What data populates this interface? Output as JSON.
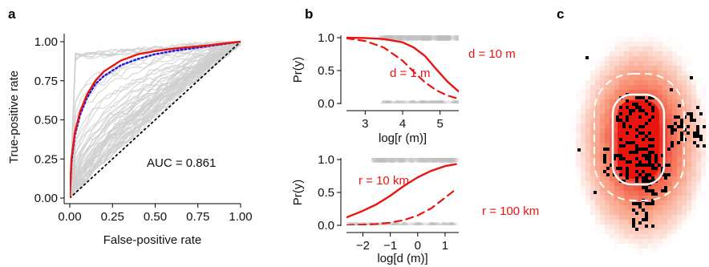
{
  "panels": {
    "a": "a",
    "b": "b",
    "c": "c"
  },
  "colors": {
    "red": "#e8140f",
    "blue": "#1a1adf",
    "gray": "#cfcfcf",
    "black": "#000000"
  },
  "chart_data": [
    {
      "type": "line",
      "panel": "a",
      "xlabel": "False-positive rate",
      "ylabel": "True-positive rate",
      "xlim": [
        0,
        1
      ],
      "ylim": [
        0,
        1
      ],
      "xticks": [
        "0.00",
        "0.25",
        "0.50",
        "0.75",
        "1.00"
      ],
      "yticks": [
        "0.00",
        "0.25",
        "0.50",
        "0.75",
        "1.00"
      ],
      "annotation": "AUC = 0.861",
      "series": [
        {
          "style": "solid-red",
          "x": [
            0,
            0.01,
            0.03,
            0.06,
            0.1,
            0.15,
            0.2,
            0.3,
            0.4,
            0.5,
            0.6,
            0.7,
            0.8,
            0.9,
            1.0
          ],
          "y": [
            0,
            0.25,
            0.42,
            0.55,
            0.66,
            0.75,
            0.81,
            0.88,
            0.92,
            0.94,
            0.955,
            0.965,
            0.975,
            0.988,
            1.0
          ]
        },
        {
          "style": "dotted-blue",
          "x": [
            0,
            0.01,
            0.03,
            0.06,
            0.1,
            0.15,
            0.2,
            0.3,
            0.4,
            0.5,
            0.6,
            0.7,
            0.8,
            0.9,
            1.0
          ],
          "y": [
            0,
            0.23,
            0.4,
            0.53,
            0.64,
            0.73,
            0.78,
            0.85,
            0.89,
            0.92,
            0.94,
            0.955,
            0.97,
            0.985,
            1.0
          ]
        },
        {
          "style": "dotted-black-diagonal",
          "x": [
            0,
            1
          ],
          "y": [
            0,
            1
          ]
        }
      ]
    },
    {
      "type": "line",
      "panel": "b-top",
      "xlabel": "log[r (m)]",
      "ylabel": "Pr(y)",
      "xlim": [
        2.5,
        5.5
      ],
      "ylim": [
        0,
        1
      ],
      "xticks": [
        "3",
        "4",
        "5"
      ],
      "yticks": [
        "0.0",
        "0.5",
        "1.0"
      ],
      "series": [
        {
          "label": "d = 10 m",
          "style": "solid-red",
          "x": [
            2.5,
            3.0,
            3.5,
            4.0,
            4.3,
            4.6,
            4.9,
            5.2,
            5.5
          ],
          "y": [
            1.0,
            0.995,
            0.98,
            0.93,
            0.85,
            0.72,
            0.52,
            0.33,
            0.18
          ]
        },
        {
          "label": "d = 1 m",
          "style": "dashed-red",
          "x": [
            2.5,
            3.0,
            3.5,
            4.0,
            4.3,
            4.6,
            4.9,
            5.2,
            5.5
          ],
          "y": [
            0.99,
            0.95,
            0.85,
            0.65,
            0.48,
            0.32,
            0.2,
            0.12,
            0.07
          ]
        }
      ]
    },
    {
      "type": "line",
      "panel": "b-bottom",
      "xlabel": "log[d (m)]",
      "ylabel": "Pr(y)",
      "xlim": [
        -2.6,
        1.5
      ],
      "ylim": [
        0,
        1
      ],
      "xticks": [
        "−2",
        "−1",
        "0",
        "1"
      ],
      "yticks": [
        "0.0",
        "0.5",
        "1.0"
      ],
      "series": [
        {
          "label": "r = 10 km",
          "style": "solid-red",
          "x": [
            -2.6,
            -2.0,
            -1.5,
            -1.0,
            -0.5,
            0,
            0.5,
            1.0,
            1.4
          ],
          "y": [
            0.12,
            0.22,
            0.32,
            0.45,
            0.6,
            0.73,
            0.83,
            0.9,
            0.93
          ]
        },
        {
          "label": "r = 100 km",
          "style": "dashed-red",
          "x": [
            -2.6,
            -2.0,
            -1.5,
            -1.0,
            -0.5,
            0,
            0.5,
            1.0,
            1.4
          ],
          "y": [
            0.0,
            0.01,
            0.02,
            0.04,
            0.08,
            0.15,
            0.26,
            0.42,
            0.55
          ]
        }
      ]
    }
  ]
}
